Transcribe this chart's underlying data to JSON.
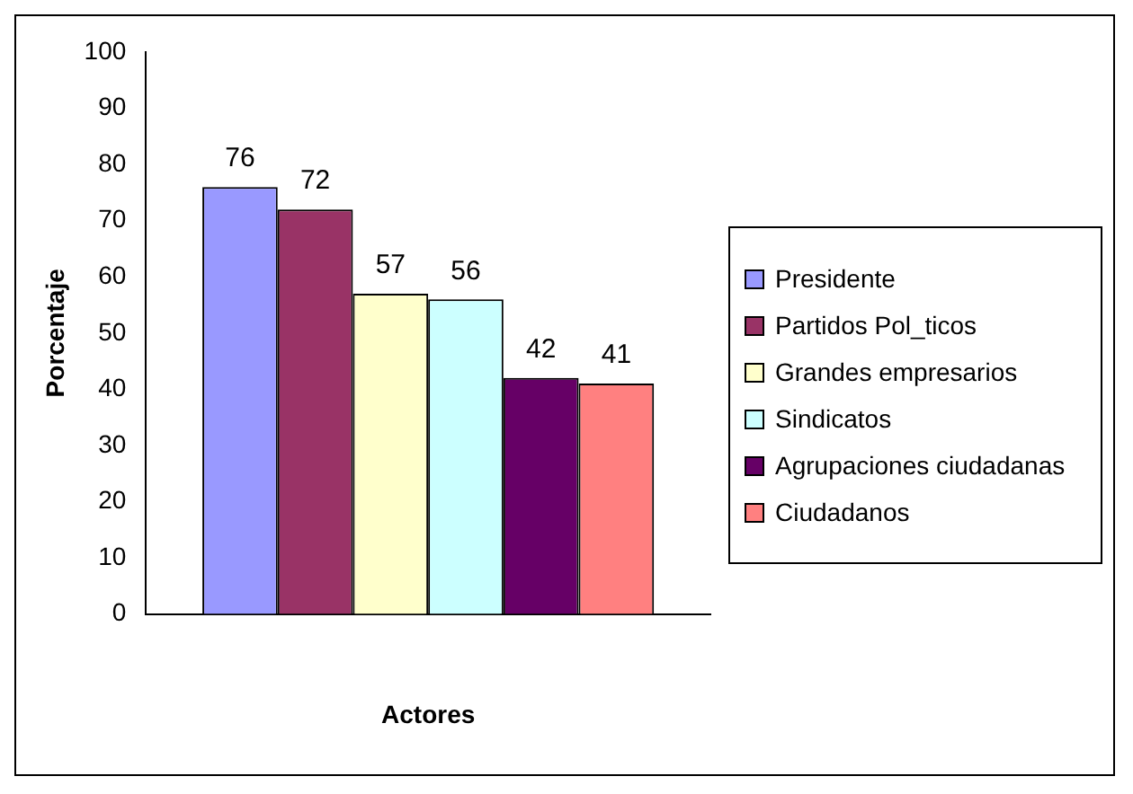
{
  "chart_data": {
    "type": "bar",
    "xlabel": "Actores",
    "ylabel": "Porcentaje",
    "categories": [
      null
    ],
    "series": [
      {
        "name": "Presidente",
        "color": "#9999ff",
        "values": [
          76
        ]
      },
      {
        "name": "Partidos Pol_ticos",
        "color": "#993366",
        "values": [
          72
        ]
      },
      {
        "name": "Grandes empresarios",
        "color": "#ffffcc",
        "values": [
          57
        ]
      },
      {
        "name": "Sindicatos",
        "color": "#ccffff",
        "values": [
          56
        ]
      },
      {
        "name": "Agrupaciones ciudadanas",
        "color": "#660066",
        "values": [
          42
        ]
      },
      {
        "name": "Ciudadanos",
        "color": "#ff8080",
        "values": [
          41
        ]
      }
    ],
    "ylim": [
      0,
      100
    ],
    "yticks": [
      0,
      10,
      20,
      30,
      40,
      50,
      60,
      70,
      80,
      90,
      100
    ],
    "grid": false,
    "legend": "right",
    "data_labels": true
  }
}
